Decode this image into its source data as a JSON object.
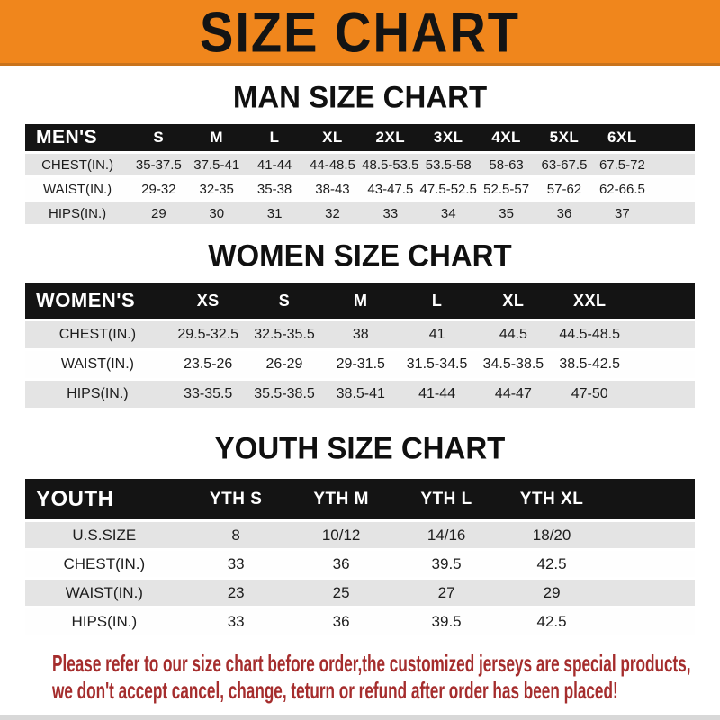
{
  "banner": {
    "title": "SIZE CHART",
    "bg_color": "#F0861C",
    "text_color": "#141414"
  },
  "sections": [
    {
      "heading": "MAN SIZE CHART",
      "table": {
        "header": [
          "MEN'S",
          "S",
          "M",
          "L",
          "XL",
          "2XL",
          "3XL",
          "4XL",
          "5XL",
          "6XL",
          ""
        ],
        "rows": [
          [
            "CHEST(IN.)",
            "35-37.5",
            "37.5-41",
            "41-44",
            "44-48.5",
            "48.5-53.5",
            "53.5-58",
            "58-63",
            "63-67.5",
            "67.5-72",
            ""
          ],
          [
            "WAIST(IN.)",
            "29-32",
            "32-35",
            "35-38",
            "38-43",
            "43-47.5",
            "47.5-52.5",
            "52.5-57",
            "57-62",
            "62-66.5",
            ""
          ],
          [
            "HIPS(IN.)",
            "29",
            "30",
            "31",
            "32",
            "33",
            "34",
            "35",
            "36",
            "37",
            ""
          ]
        ]
      }
    },
    {
      "heading": "WOMEN SIZE CHART",
      "table": {
        "header": [
          "WOMEN'S",
          "XS",
          "S",
          "M",
          "L",
          "XL",
          "XXL",
          ""
        ],
        "rows": [
          [
            "CHEST(IN.)",
            "29.5-32.5",
            "32.5-35.5",
            "38",
            "41",
            "44.5",
            "44.5-48.5",
            ""
          ],
          [
            "WAIST(IN.)",
            "23.5-26",
            "26-29",
            "29-31.5",
            "31.5-34.5",
            "34.5-38.5",
            "38.5-42.5",
            ""
          ],
          [
            "HIPS(IN.)",
            "33-35.5",
            "35.5-38.5",
            "38.5-41",
            "41-44",
            "44-47",
            "47-50",
            ""
          ]
        ]
      }
    },
    {
      "heading": "YOUTH SIZE CHART",
      "table": {
        "header": [
          "YOUTH",
          "YTH S",
          "YTH M",
          "YTH L",
          "YTH XL",
          ""
        ],
        "rows": [
          [
            "U.S.SIZE",
            "8",
            "10/12",
            "14/16",
            "18/20",
            ""
          ],
          [
            "CHEST(IN.)",
            "33",
            "36",
            "39.5",
            "42.5",
            ""
          ],
          [
            "WAIST(IN.)",
            "23",
            "25",
            "27",
            "29",
            ""
          ],
          [
            "HIPS(IN.)",
            "33",
            "36",
            "39.5",
            "42.5",
            ""
          ]
        ]
      }
    }
  ],
  "footer": {
    "line1": "Please refer to our size chart before order,the customized jerseys are special products,",
    "line2": "we don't accept cancel, change, teturn or refund after order has been placed!"
  },
  "colors": {
    "banner_orange": "#F0861C",
    "table_header_black": "#141414",
    "stripe_row_gray": "#E4E4E4",
    "disclaimer_red": "#A52D2D"
  }
}
